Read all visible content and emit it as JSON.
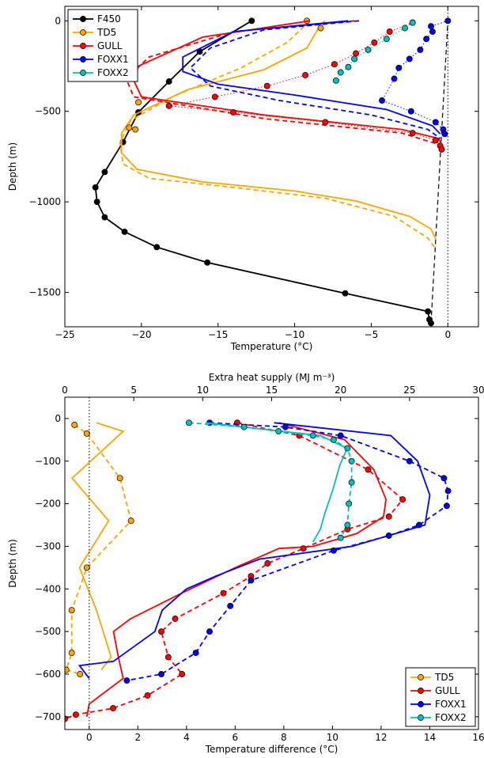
{
  "chart_data": [
    {
      "type": "line",
      "xlabel": "Temperature (°C)",
      "ylabel": "Depth (m)",
      "xlim": [
        -25,
        2
      ],
      "ylim": [
        -1690,
        80
      ],
      "xticks": [
        -25,
        -20,
        -15,
        -10,
        -5,
        0
      ],
      "yticks": [
        0,
        -500,
        -1000,
        -1500
      ],
      "grid": false,
      "legend_position": "top-left",
      "legend": [
        "F450",
        "TD5",
        "GULL",
        "FOXX1",
        "FOXX2"
      ],
      "series": [
        {
          "name": "F450",
          "color": "#000000",
          "style": "solid-markers",
          "points": [
            [
              -12.8,
              0
            ],
            [
              -16.2,
              -170
            ],
            [
              -18.2,
              -335
            ],
            [
              -20.2,
              -505
            ],
            [
              -21.2,
              -670
            ],
            [
              -22.4,
              -835
            ],
            [
              -23,
              -920
            ],
            [
              -22.9,
              -1000
            ],
            [
              -22.4,
              -1085
            ],
            [
              -21.1,
              -1165
            ],
            [
              -19,
              -1250
            ],
            [
              -15.7,
              -1335
            ],
            [
              -6.7,
              -1505
            ],
            [
              -1.3,
              -1605
            ],
            [
              -1.2,
              -1650
            ],
            [
              -1.1,
              -1670
            ]
          ]
        },
        {
          "name": "F450 link",
          "color": "#000000",
          "style": "dashed",
          "points": [
            [
              -1.1,
              -1670
            ],
            [
              0,
              0
            ]
          ]
        },
        {
          "name": "TD5 profile",
          "color": "#ffa500",
          "style": "solid",
          "points": [
            [
              -8,
              0
            ],
            [
              -8.3,
              -20
            ],
            [
              -9.2,
              -150
            ],
            [
              -12,
              -270
            ],
            [
              -17,
              -380
            ],
            [
              -20.5,
              -520
            ],
            [
              -21.3,
              -620
            ],
            [
              -21.3,
              -730
            ],
            [
              -20.3,
              -820
            ],
            [
              -16,
              -890
            ],
            [
              -10,
              -940
            ],
            [
              -6,
              -995
            ],
            [
              -2.5,
              -1080
            ],
            [
              -1.1,
              -1150
            ],
            [
              -0.8,
              -1205
            ]
          ]
        },
        {
          "name": "TD5 model",
          "color": "#ffa500",
          "style": "dashed",
          "points": [
            [
              -9,
              0
            ],
            [
              -10.5,
              -120
            ],
            [
              -13.5,
              -260
            ],
            [
              -18,
              -420
            ],
            [
              -20.7,
              -550
            ],
            [
              -21.4,
              -670
            ],
            [
              -21.2,
              -790
            ],
            [
              -19.5,
              -870
            ],
            [
              -14,
              -920
            ],
            [
              -8,
              -980
            ],
            [
              -3.5,
              -1080
            ],
            [
              -1.3,
              -1200
            ],
            [
              -0.8,
              -1260
            ]
          ]
        },
        {
          "name": "TD5 obs",
          "color": "#ffa500",
          "style": "markers",
          "points": [
            [
              -8.3,
              -40
            ],
            [
              -9.2,
              0
            ],
            [
              -20.2,
              -450
            ],
            [
              -20.8,
              -590
            ],
            [
              -20.4,
              -600
            ]
          ]
        },
        {
          "name": "GULL profile",
          "color": "#ff0000",
          "style": "solid",
          "points": [
            [
              -9,
              0
            ],
            [
              -16,
              -90
            ],
            [
              -20.2,
              -250
            ],
            [
              -20.5,
              -330
            ],
            [
              -20,
              -420
            ],
            [
              -12,
              -520
            ],
            [
              -3,
              -600
            ],
            [
              -0.6,
              -650
            ],
            [
              -0.3,
              -700
            ]
          ]
        },
        {
          "name": "GULL model",
          "color": "#ff0000",
          "style": "dashed",
          "points": [
            [
              -6.1,
              0
            ],
            [
              -14,
              -60
            ],
            [
              -19.5,
              -200
            ],
            [
              -21,
              -320
            ],
            [
              -20.5,
              -420
            ],
            [
              -12,
              -540
            ],
            [
              -3,
              -620
            ],
            [
              -0.7,
              -680
            ],
            [
              -0.4,
              -720
            ]
          ]
        },
        {
          "name": "GULL obs",
          "color": "#ff0000",
          "style": "dotted-markers",
          "points": [
            [
              -2.3,
              -10
            ],
            [
              -3.8,
              -60
            ],
            [
              -4.8,
              -120
            ],
            [
              -6,
              -180
            ],
            [
              -7.4,
              -240
            ],
            [
              -9.3,
              -300
            ],
            [
              -11.8,
              -360
            ],
            [
              -15.2,
              -420
            ],
            [
              -18.2,
              -470
            ],
            [
              -14,
              -505
            ],
            [
              -8,
              -560
            ],
            [
              -2.3,
              -620
            ],
            [
              -0.8,
              -660
            ],
            [
              -0.5,
              -690
            ],
            [
              -0.4,
              -710
            ]
          ]
        },
        {
          "name": "FOXX1 profile",
          "color": "#0000ff",
          "style": "solid",
          "points": [
            [
              -6.5,
              0
            ],
            [
              -14,
              -60
            ],
            [
              -17.3,
              -200
            ],
            [
              -17.3,
              -280
            ],
            [
              -15,
              -350
            ],
            [
              -10,
              -410
            ],
            [
              -4,
              -490
            ],
            [
              -1,
              -580
            ],
            [
              -0.5,
              -625
            ]
          ]
        },
        {
          "name": "FOXX1 model",
          "color": "#0000ff",
          "style": "dashed",
          "points": [
            [
              -5.8,
              0
            ],
            [
              -12,
              -50
            ],
            [
              -15.5,
              -150
            ],
            [
              -16.8,
              -260
            ],
            [
              -15.5,
              -360
            ],
            [
              -11,
              -440
            ],
            [
              -5,
              -520
            ],
            [
              -1.3,
              -600
            ],
            [
              -0.5,
              -650
            ]
          ]
        },
        {
          "name": "FOXX1 obs",
          "color": "#0000ff",
          "style": "dotted-markers",
          "points": [
            [
              0,
              0
            ],
            [
              -1.1,
              -30
            ],
            [
              -1,
              -60
            ],
            [
              -1.4,
              -100
            ],
            [
              -1.8,
              -160
            ],
            [
              -2.5,
              -210
            ],
            [
              -3.2,
              -260
            ],
            [
              -3.5,
              -320
            ],
            [
              -4.3,
              -440
            ],
            [
              -2.4,
              -500
            ],
            [
              -0.8,
              -560
            ],
            [
              -0.3,
              -600
            ],
            [
              -0.2,
              -625
            ]
          ]
        },
        {
          "name": "FOXX2 obs",
          "color": "#00bfbf",
          "style": "dotted-markers",
          "points": [
            [
              -2.3,
              -10
            ],
            [
              -2.8,
              -40
            ],
            [
              -4,
              -100
            ],
            [
              -5.2,
              -160
            ],
            [
              -6.1,
              -210
            ],
            [
              -6.5,
              -255
            ],
            [
              -7,
              -285
            ],
            [
              -7.3,
              -330
            ]
          ]
        },
        {
          "name": "zero line",
          "color": "#000000",
          "style": "dotted",
          "points": [
            [
              0,
              80
            ],
            [
              0,
              -1690
            ]
          ]
        }
      ]
    },
    {
      "type": "line",
      "xlabel": "Temperature difference (°C)",
      "ylabel": "Depth (m)",
      "x2label": "Extra heat supply (MJ m⁻³)",
      "xlim": [
        -1,
        16
      ],
      "x2lim": [
        0,
        30
      ],
      "ylim": [
        -730,
        50
      ],
      "xticks": [
        0,
        2,
        4,
        6,
        8,
        10,
        12,
        14,
        16
      ],
      "x2ticks": [
        0,
        5,
        10,
        15,
        20,
        25,
        30
      ],
      "yticks": [
        0,
        -100,
        -200,
        -300,
        -400,
        -500,
        -600,
        -700
      ],
      "grid": false,
      "legend_position": "bottom-right",
      "legend": [
        "TD5",
        "GULL",
        "FOXX1",
        "FOXX2"
      ],
      "series": [
        {
          "name": "TD5 temp diff",
          "color": "#ffa500",
          "style": "solid",
          "points": [
            [
              0.3,
              -10
            ],
            [
              1.4,
              -30
            ],
            [
              -0.7,
              -140
            ],
            [
              0.8,
              -240
            ],
            [
              -0.4,
              -350
            ],
            [
              0.3,
              -450
            ],
            [
              0.9,
              -560
            ],
            [
              0.5,
              -590
            ]
          ]
        },
        {
          "name": "TD5 heat",
          "color": "#ffa500",
          "style": "dashed-markers",
          "points": [
            [
              0.7,
              -15
            ],
            [
              1.6,
              -35
            ],
            [
              4,
              -140
            ],
            [
              4.8,
              -240
            ],
            [
              1.6,
              -350
            ],
            [
              0.5,
              -450
            ],
            [
              0.5,
              -550
            ],
            [
              0.1,
              -590
            ],
            [
              1.1,
              -600
            ]
          ]
        },
        {
          "name": "GULL temp diff",
          "color": "#ff0000",
          "style": "solid",
          "points": [
            [
              7.8,
              -10
            ],
            [
              10.5,
              -50
            ],
            [
              11.7,
              -120
            ],
            [
              12.2,
              -190
            ],
            [
              12.1,
              -230
            ],
            [
              11,
              -270
            ],
            [
              9.2,
              -300
            ],
            [
              7.8,
              -305
            ],
            [
              6,
              -350
            ],
            [
              3.8,
              -410
            ],
            [
              1.7,
              -470
            ],
            [
              1,
              -500
            ],
            [
              1.2,
              -560
            ],
            [
              1.4,
              -610
            ],
            [
              0,
              -670
            ],
            [
              -0.1,
              -700
            ]
          ]
        },
        {
          "name": "GULL heat",
          "color": "#ff0000",
          "style": "dashed-markers",
          "points": [
            [
              12.5,
              -10
            ],
            [
              17,
              -40
            ],
            [
              22,
              -120
            ],
            [
              24.5,
              -190
            ],
            [
              23.5,
              -230
            ],
            [
              20.5,
              -260
            ],
            [
              17.3,
              -305
            ],
            [
              14.7,
              -340
            ],
            [
              13.5,
              -370
            ],
            [
              11.5,
              -410
            ],
            [
              8,
              -470
            ],
            [
              7,
              -500
            ],
            [
              7.5,
              -560
            ],
            [
              8.5,
              -600
            ],
            [
              6,
              -650
            ],
            [
              3.5,
              -680
            ],
            [
              0.8,
              -695
            ],
            [
              0,
              -705
            ]
          ]
        },
        {
          "name": "FOXX1 temp diff",
          "color": "#0000ff",
          "style": "solid",
          "points": [
            [
              7.6,
              -10
            ],
            [
              12.4,
              -40
            ],
            [
              13.5,
              -100
            ],
            [
              14,
              -180
            ],
            [
              13.8,
              -250
            ],
            [
              10.8,
              -300
            ],
            [
              7,
              -330
            ],
            [
              5.2,
              -370
            ],
            [
              4,
              -400
            ],
            [
              3,
              -450
            ],
            [
              2.7,
              -500
            ],
            [
              1,
              -570
            ],
            [
              -0.4,
              -580
            ],
            [
              0,
              -610
            ]
          ]
        },
        {
          "name": "FOXX1 heat",
          "color": "#0000ff",
          "style": "dashed-markers",
          "points": [
            [
              10.5,
              -10
            ],
            [
              16,
              -20
            ],
            [
              20,
              -40
            ],
            [
              25,
              -100
            ],
            [
              27.5,
              -140
            ],
            [
              27.8,
              -170
            ],
            [
              27.7,
              -205
            ],
            [
              25.7,
              -250
            ],
            [
              23.5,
              -275
            ],
            [
              19.5,
              -310
            ],
            [
              13.5,
              -380
            ],
            [
              12,
              -440
            ],
            [
              10.5,
              -500
            ],
            [
              9.5,
              -550
            ],
            [
              7,
              -600
            ],
            [
              4.5,
              -615
            ]
          ]
        },
        {
          "name": "FOXX2 temp diff",
          "color": "#00bfbf",
          "style": "solid",
          "points": [
            [
              4.8,
              -10
            ],
            [
              9.5,
              -40
            ],
            [
              10.6,
              -70
            ],
            [
              10.3,
              -110
            ],
            [
              10,
              -170
            ],
            [
              9.7,
              -220
            ],
            [
              9.5,
              -260
            ],
            [
              9.2,
              -290
            ]
          ]
        },
        {
          "name": "FOXX2 heat",
          "color": "#00bfbf",
          "style": "dashed-markers",
          "points": [
            [
              9,
              -10
            ],
            [
              13,
              -20
            ],
            [
              15.5,
              -30
            ],
            [
              18,
              -40
            ],
            [
              19.5,
              -50
            ],
            [
              20.5,
              -70
            ],
            [
              20.8,
              -100
            ],
            [
              20.8,
              -150
            ],
            [
              20.6,
              -200
            ],
            [
              20.5,
              -250
            ],
            [
              20,
              -280
            ]
          ]
        },
        {
          "name": "zero line",
          "color": "#000000",
          "style": "dotted",
          "points": [
            [
              0,
              50
            ],
            [
              0,
              -730
            ]
          ]
        }
      ]
    }
  ]
}
